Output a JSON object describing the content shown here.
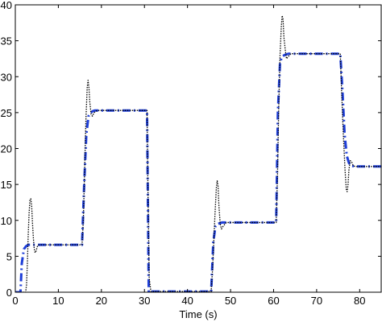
{
  "chart_data": {
    "type": "line",
    "title": "",
    "xlabel": "Time (s)",
    "ylabel": "",
    "xlim": [
      0,
      85
    ],
    "ylim": [
      0,
      40
    ],
    "xticks": [
      0,
      10,
      20,
      30,
      40,
      50,
      60,
      70,
      80
    ],
    "yticks": [
      0,
      5,
      10,
      15,
      20,
      25,
      30,
      35,
      40
    ],
    "grid": false,
    "series": [
      {
        "style": "dash-dot",
        "color": "#1f3fd8",
        "x": [
          0,
          1.2,
          1.5,
          2,
          2.5,
          3,
          15.5,
          16,
          16.5,
          17,
          17.5,
          18,
          18.5,
          30.6,
          31,
          31.5,
          45.5,
          46,
          46.5,
          47,
          47.5,
          48,
          60.6,
          61,
          61.5,
          62,
          62.5,
          63,
          63.5,
          75.5,
          76,
          76.5,
          77,
          77.5,
          78,
          79,
          85
        ],
        "y": [
          0,
          0,
          4,
          6,
          6.4,
          6.6,
          6.6,
          15,
          22,
          24.5,
          25,
          25.2,
          25.3,
          25.3,
          0,
          0.1,
          0.1,
          7,
          9.2,
          9.5,
          9.6,
          9.7,
          9.7,
          25,
          32,
          32.8,
          33,
          33.1,
          33.2,
          33.2,
          28,
          22,
          19,
          18,
          17.6,
          17.5,
          17.5
        ]
      },
      {
        "style": "dotted",
        "color": "#000000",
        "x": [
          0,
          2.4,
          2.6,
          2.8,
          3,
          3.2,
          3.4,
          3.6,
          3.8,
          4,
          4.2,
          4.4,
          4.6,
          4.8,
          5,
          5.2,
          5.5,
          6,
          15.5,
          15.8,
          16.1,
          16.4,
          16.7,
          16.9,
          17.1,
          17.3,
          17.6,
          17.9,
          18.3,
          19,
          30.6,
          30.8,
          31.1,
          31.5,
          45.5,
          45.8,
          46.1,
          46.4,
          46.7,
          46.9,
          47.1,
          47.3,
          47.6,
          47.9,
          48.3,
          49,
          60.6,
          60.9,
          61.2,
          61.5,
          61.8,
          62,
          62.2,
          62.4,
          62.7,
          63,
          63.4,
          64,
          75.5,
          75.8,
          76.2,
          76.6,
          76.9,
          77.1,
          77.3,
          77.5,
          77.8,
          78.1,
          78.5,
          79,
          85
        ],
        "y": [
          0,
          0,
          1,
          4,
          8,
          11,
          12.8,
          13,
          12,
          9.5,
          7.5,
          6,
          5.5,
          5.7,
          6.1,
          6.5,
          6.6,
          6.6,
          6.6,
          10,
          17,
          24,
          28.5,
          29.5,
          28.5,
          26.5,
          24.8,
          24.5,
          25,
          25.3,
          25.3,
          15,
          2,
          0.1,
          0.1,
          3,
          7,
          11,
          14.5,
          15.5,
          14.8,
          12,
          9.5,
          8.8,
          9.2,
          9.7,
          9.7,
          16,
          26,
          33,
          37,
          38.5,
          38,
          35.5,
          33.8,
          32.5,
          32.8,
          33.2,
          33.2,
          28,
          22,
          17,
          14.2,
          14,
          15,
          17,
          18.3,
          18.2,
          17.6,
          17.5,
          17.5
        ]
      }
    ]
  }
}
